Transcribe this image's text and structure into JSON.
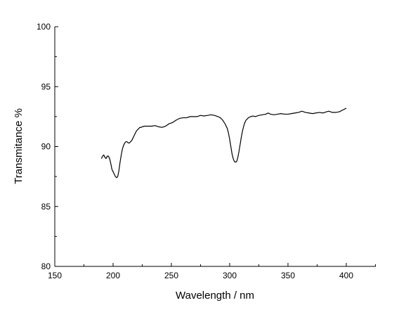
{
  "chart_data": {
    "type": "line",
    "title": "",
    "xlabel": "Wavelength / nm",
    "ylabel": "Transmitance %",
    "xlim": [
      150,
      400
    ],
    "ylim": [
      80,
      100
    ],
    "x_ticks": [
      150,
      200,
      250,
      300,
      350,
      400
    ],
    "y_ticks": [
      80,
      85,
      90,
      95,
      100
    ],
    "x_tick_labels": [
      "150",
      "200",
      "250",
      "300",
      "350",
      "400"
    ],
    "y_tick_labels": [
      "80",
      "85",
      "90",
      "95",
      "100"
    ],
    "grid": false,
    "legend": "none",
    "line_color": "#000000",
    "series": [
      {
        "x": [
          190,
          191,
          192,
          193,
          194,
          195,
          196,
          197,
          198,
          199,
          200,
          201,
          202,
          203,
          204,
          205,
          206,
          207,
          208,
          209,
          210,
          211,
          212,
          213,
          214,
          215,
          216,
          217,
          218,
          219,
          220,
          221,
          222,
          223,
          224,
          225,
          227,
          230,
          233,
          236,
          239,
          242,
          245,
          248,
          251,
          254,
          257,
          260,
          263,
          266,
          269,
          272,
          275,
          278,
          281,
          284,
          287,
          290,
          292,
          294,
          296,
          298,
          299,
          300,
          301,
          302,
          303,
          304,
          305,
          306,
          307,
          308,
          309,
          310,
          311,
          312,
          313,
          314,
          315,
          316,
          318,
          320,
          322,
          325,
          328,
          331,
          333,
          335,
          338,
          341,
          344,
          347,
          350,
          353,
          356,
          359,
          362,
          365,
          368,
          371,
          374,
          377,
          380,
          383,
          385,
          388,
          391,
          394,
          397,
          400
        ],
        "y": [
          89.0,
          89.2,
          89.3,
          89.1,
          89.0,
          89.2,
          89.2,
          89.0,
          88.6,
          88.1,
          87.9,
          87.7,
          87.5,
          87.4,
          87.5,
          88.0,
          88.7,
          89.3,
          89.8,
          90.1,
          90.3,
          90.4,
          90.4,
          90.3,
          90.3,
          90.4,
          90.5,
          90.7,
          90.9,
          91.1,
          91.3,
          91.4,
          91.5,
          91.6,
          91.6,
          91.65,
          91.7,
          91.7,
          91.7,
          91.75,
          91.65,
          91.6,
          91.7,
          91.9,
          92.0,
          92.2,
          92.35,
          92.4,
          92.4,
          92.5,
          92.5,
          92.5,
          92.6,
          92.55,
          92.6,
          92.65,
          92.6,
          92.5,
          92.4,
          92.2,
          91.9,
          91.5,
          91.1,
          90.6,
          90.0,
          89.4,
          89.0,
          88.75,
          88.7,
          88.75,
          89.1,
          89.6,
          90.2,
          90.8,
          91.3,
          91.7,
          92.0,
          92.2,
          92.3,
          92.4,
          92.5,
          92.55,
          92.5,
          92.6,
          92.65,
          92.7,
          92.8,
          92.7,
          92.65,
          92.7,
          92.75,
          92.7,
          92.7,
          92.75,
          92.8,
          92.85,
          92.95,
          92.85,
          92.8,
          92.75,
          92.8,
          92.85,
          92.8,
          92.9,
          92.95,
          92.85,
          92.85,
          92.9,
          93.05,
          93.2
        ]
      }
    ]
  }
}
